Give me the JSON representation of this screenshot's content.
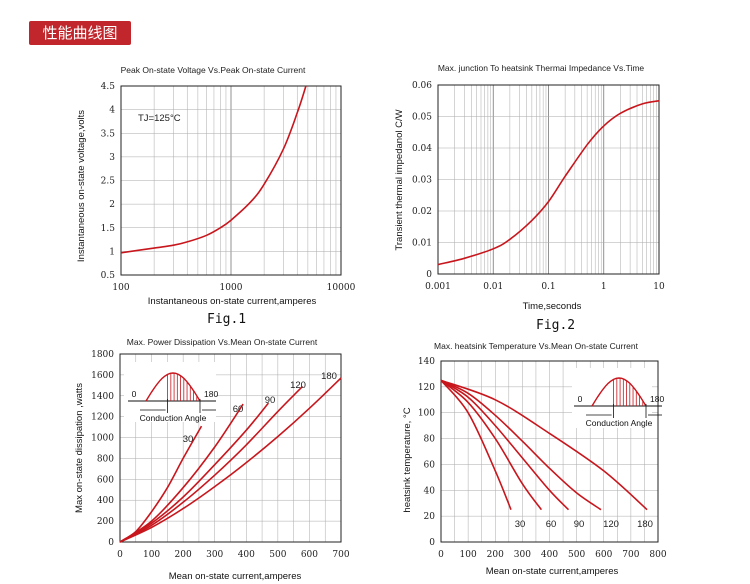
{
  "banner": "性能曲线图",
  "captions": {
    "fig1": "Fig.1",
    "fig2": "Fig.2"
  },
  "colors": {
    "curve": "#c8161d",
    "banner": "#c0262b"
  },
  "chart_data": [
    {
      "type": "line",
      "title": "Peak On-state Voltage Vs.Peak On-state Current",
      "xlabel": "Instantaneous on-state current,amperes",
      "ylabel": "Instantaneous on-state voltage,volts",
      "xscale": "log",
      "xlim": [
        100,
        10000
      ],
      "ylim": [
        0.5,
        4.5
      ],
      "xticks": [
        "100",
        "1000",
        "10000"
      ],
      "yticks": [
        "0.5",
        "1",
        "1.5",
        "2",
        "2.5",
        "3",
        "3.5",
        "4",
        "4.5"
      ],
      "annotation": "TJ=125°C",
      "series": [
        {
          "x": [
            100,
            200,
            300,
            400,
            600,
            800,
            1000,
            1500,
            2000,
            3000,
            4000,
            4800
          ],
          "y": [
            0.97,
            1.07,
            1.13,
            1.2,
            1.34,
            1.5,
            1.66,
            2.04,
            2.42,
            3.17,
            3.93,
            4.5
          ]
        }
      ]
    },
    {
      "type": "line",
      "title": "Max. junction To heatsink Thermai Impedance Vs.Time",
      "xlabel": "Time,seconds",
      "ylabel": "Transient thermal impedanol C/W",
      "xscale": "log",
      "xlim": [
        0.001,
        10
      ],
      "ylim": [
        0,
        0.06
      ],
      "xticks": [
        "0.001",
        "0.01",
        "0.1",
        "1",
        "10"
      ],
      "yticks": [
        "0",
        "0.01",
        "0.02",
        "0.03",
        "0.04",
        "0.05",
        "0.06"
      ],
      "series": [
        {
          "x": [
            0.001,
            0.003,
            0.01,
            0.02,
            0.05,
            0.1,
            0.2,
            0.5,
            1,
            2,
            5,
            10
          ],
          "y": [
            0.003,
            0.005,
            0.008,
            0.011,
            0.017,
            0.023,
            0.031,
            0.041,
            0.047,
            0.051,
            0.054,
            0.055
          ]
        }
      ]
    },
    {
      "type": "line",
      "title": "Max. Power Dissipation Vs.Mean On-state Current",
      "xlabel": "Mean on-state current,amperes",
      "ylabel": "Max on-state dissipation ,watts",
      "xlim": [
        0,
        700
      ],
      "ylim": [
        0,
        1800
      ],
      "xticks": [
        "0",
        "100",
        "200",
        "300",
        "400",
        "500",
        "600",
        "700"
      ],
      "yticks": [
        "0",
        "200",
        "400",
        "600",
        "800",
        "1000",
        "1200",
        "1400",
        "1600",
        "1800"
      ],
      "inset": {
        "left": "0",
        "right": "180",
        "caption": "Conduction Angle"
      },
      "series": [
        {
          "name": "30",
          "x": [
            0,
            50,
            100,
            150,
            200,
            258
          ],
          "y": [
            0,
            100,
            290,
            520,
            800,
            1110
          ]
        },
        {
          "name": "60",
          "x": [
            0,
            100,
            200,
            300,
            390
          ],
          "y": [
            0,
            200,
            520,
            910,
            1320
          ]
        },
        {
          "name": "90",
          "x": [
            0,
            100,
            200,
            300,
            400,
            470
          ],
          "y": [
            0,
            180,
            430,
            740,
            1070,
            1330
          ]
        },
        {
          "name": "120",
          "x": [
            0,
            100,
            200,
            300,
            400,
            500,
            578
          ],
          "y": [
            0,
            160,
            380,
            640,
            930,
            1250,
            1490
          ]
        },
        {
          "name": "180",
          "x": [
            0,
            100,
            200,
            300,
            400,
            500,
            600,
            700
          ],
          "y": [
            0,
            140,
            320,
            530,
            760,
            1010,
            1280,
            1570
          ]
        }
      ]
    },
    {
      "type": "line",
      "title": "Max. heatsink Temperature Vs.Mean On-state Current",
      "xlabel": "Mean on-state current,amperes",
      "ylabel": "heatsink temperature, °C",
      "xlim": [
        0,
        800
      ],
      "ylim": [
        0,
        140
      ],
      "xticks": [
        "0",
        "100",
        "200",
        "300",
        "400",
        "500",
        "600",
        "700",
        "800"
      ],
      "yticks": [
        "0",
        "20",
        "40",
        "60",
        "80",
        "100",
        "120",
        "140"
      ],
      "inset": {
        "left": "0",
        "right": "180",
        "caption": "Conduction Angle"
      },
      "series": [
        {
          "name": "30",
          "x": [
            0,
            100,
            200,
            258
          ],
          "y": [
            125,
            100,
            55,
            25
          ]
        },
        {
          "name": "60",
          "x": [
            0,
            100,
            200,
            300,
            370
          ],
          "y": [
            125,
            108,
            80,
            45,
            25
          ]
        },
        {
          "name": "90",
          "x": [
            0,
            100,
            200,
            300,
            400,
            470
          ],
          "y": [
            125,
            112,
            90,
            65,
            40,
            25
          ]
        },
        {
          "name": "120",
          "x": [
            0,
            100,
            200,
            300,
            400,
            500,
            590
          ],
          "y": [
            125,
            115,
            98,
            78,
            57,
            38,
            25
          ]
        },
        {
          "name": "180",
          "x": [
            0,
            200,
            400,
            600,
            760
          ],
          "y": [
            125,
            110,
            84,
            55,
            25
          ]
        }
      ]
    }
  ]
}
